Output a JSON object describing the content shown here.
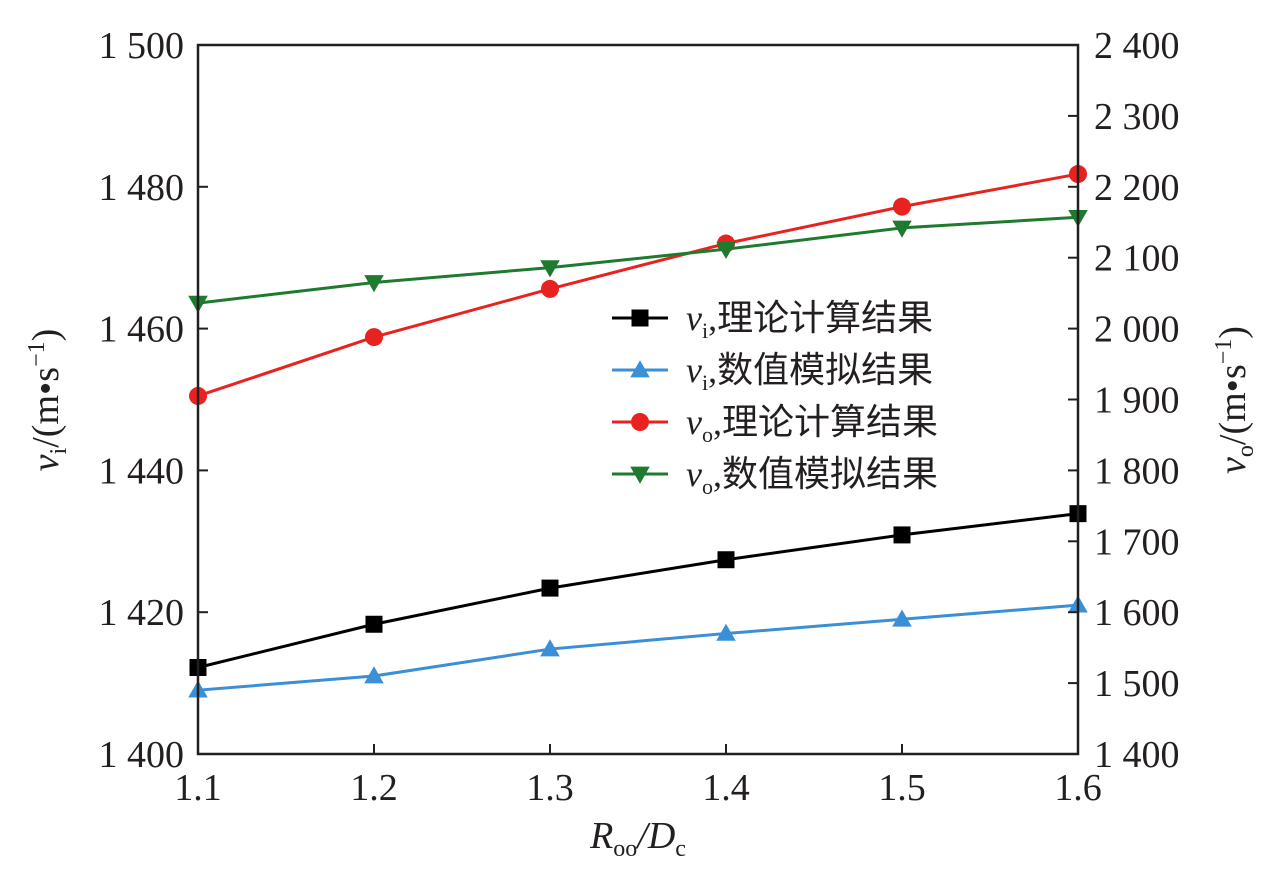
{
  "chart_data": {
    "type": "line",
    "xlabel": {
      "main": "R",
      "main_sub": "oo",
      "sep": "/D",
      "sep_sub": "c"
    },
    "ylabel_left": {
      "var": "v",
      "sub": "i",
      "unit": "/(m•s",
      "sup": "−1",
      "close": ")"
    },
    "ylabel_right": {
      "var": "v",
      "sub": "o",
      "unit": "/(m•s",
      "sup": "−1",
      "close": ")"
    },
    "xlim": [
      1.1,
      1.6
    ],
    "ylim_left": [
      1400,
      1500
    ],
    "ylim_right": [
      1400,
      2400
    ],
    "x_ticks": [
      "1.1",
      "1.2",
      "1.3",
      "1.4",
      "1.5",
      "1.6"
    ],
    "y_left_ticks": [
      "1 400",
      "1 420",
      "1 440",
      "1 460",
      "1 480",
      "1 500"
    ],
    "y_right_ticks": [
      "1 400",
      "1 500",
      "1 600",
      "1 700",
      "1 800",
      "1 900",
      "2 000",
      "2 100",
      "2 200",
      "2 300",
      "2 400"
    ],
    "x": [
      1.1,
      1.2,
      1.3,
      1.4,
      1.5,
      1.6
    ],
    "legend_position": "center-right",
    "series": [
      {
        "var": "v",
        "sub": "i",
        "label": ",理论计算结果",
        "axis": "left",
        "marker": "square",
        "color": "#000000",
        "values": [
          1412.2,
          1418.3,
          1423.4,
          1427.4,
          1430.9,
          1433.9
        ]
      },
      {
        "var": "v",
        "sub": "i",
        "label": ",数值模拟结果",
        "axis": "left",
        "marker": "triangle-up",
        "color": "#3a8fd6",
        "values": [
          1409.0,
          1411.0,
          1414.8,
          1417.0,
          1419.0,
          1421.0
        ]
      },
      {
        "var": "v",
        "sub": "o",
        "label": ",理论计算结果",
        "axis": "right",
        "marker": "circle",
        "color": "#e8231f",
        "values": [
          1905,
          1988,
          2056,
          2120,
          2172,
          2218
        ]
      },
      {
        "var": "v",
        "sub": "o",
        "label": ",数值模拟结果",
        "axis": "right",
        "marker": "triangle-down",
        "color": "#1e7a2e",
        "values": [
          2036,
          2065,
          2086,
          2112,
          2142,
          2157
        ]
      }
    ]
  }
}
